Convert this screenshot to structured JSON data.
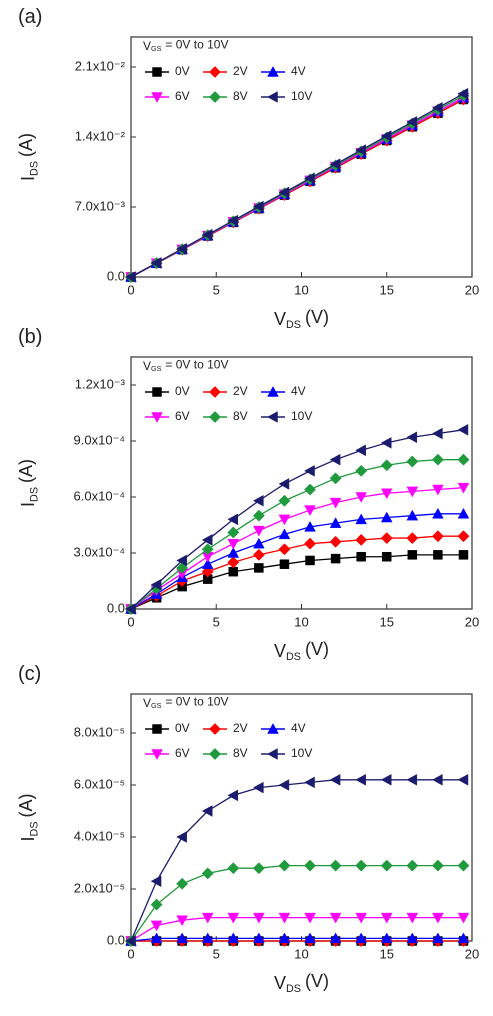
{
  "chart_data": [
    {
      "type": "line",
      "label": "(a)",
      "xlabel": {
        "text": "V",
        "sub": "DS",
        "unit": "(V)"
      },
      "ylabel": {
        "text": "I",
        "sub": "DS",
        "unit": "(A)"
      },
      "legend_title": {
        "text": "V",
        "sub": "GS",
        "rest": "= 0V to 10V"
      },
      "x": [
        0,
        1.5,
        3,
        4.5,
        6,
        7.5,
        9,
        10.5,
        12,
        13.5,
        15,
        16.5,
        18,
        19.5
      ],
      "xlim": [
        0,
        20
      ],
      "xticks": [
        0,
        5,
        10,
        15,
        20
      ],
      "ylim": [
        0,
        0.024
      ],
      "yticks": [
        {
          "value": 0,
          "label": "0.0"
        },
        {
          "value": 0.007,
          "label": "7.0x10⁻³"
        },
        {
          "value": 0.014,
          "label": "1.4x10⁻²"
        },
        {
          "value": 0.021,
          "label": "2.1x10⁻²"
        }
      ],
      "series": [
        {
          "name": "0V",
          "color": "#000000",
          "marker": "square",
          "values": [
            0,
            0.00137,
            0.00273,
            0.0041,
            0.00546,
            0.00683,
            0.00819,
            0.00956,
            0.01092,
            0.01229,
            0.01365,
            0.01502,
            0.01638,
            0.01775
          ]
        },
        {
          "name": "2V",
          "color": "#ff0000",
          "marker": "diamond",
          "values": [
            0,
            0.00137,
            0.00273,
            0.0041,
            0.00546,
            0.00683,
            0.00819,
            0.00956,
            0.01092,
            0.01229,
            0.01365,
            0.01502,
            0.01638,
            0.01775
          ]
        },
        {
          "name": "4V",
          "color": "#0000ff",
          "marker": "triangle-up",
          "values": [
            0,
            0.00138,
            0.00276,
            0.00414,
            0.00552,
            0.0069,
            0.00828,
            0.00966,
            0.01104,
            0.01242,
            0.0138,
            0.01518,
            0.01656,
            0.01794
          ]
        },
        {
          "name": "6V",
          "color": "#ff00ff",
          "marker": "triangle-down",
          "values": [
            0,
            0.00138,
            0.00276,
            0.00414,
            0.00552,
            0.0069,
            0.00828,
            0.00966,
            0.01104,
            0.01242,
            0.0138,
            0.01518,
            0.01656,
            0.01794
          ]
        },
        {
          "name": "8V",
          "color": "#1f9a3c",
          "marker": "diamond",
          "values": [
            0,
            0.0014,
            0.00279,
            0.00419,
            0.00558,
            0.00698,
            0.00837,
            0.00977,
            0.01116,
            0.01256,
            0.01395,
            0.01535,
            0.01674,
            0.01814
          ]
        },
        {
          "name": "10V",
          "color": "#1c1c6e",
          "marker": "triangle-left",
          "values": [
            0,
            0.00141,
            0.00282,
            0.00423,
            0.00564,
            0.00705,
            0.00846,
            0.00987,
            0.01128,
            0.01269,
            0.0141,
            0.01551,
            0.01692,
            0.01833
          ]
        }
      ]
    },
    {
      "type": "line",
      "label": "(b)",
      "xlabel": {
        "text": "V",
        "sub": "DS",
        "unit": "(V)"
      },
      "ylabel": {
        "text": "I",
        "sub": "DS",
        "unit": "(A)"
      },
      "legend_title": {
        "text": "V",
        "sub": "GS",
        "rest": "= 0V to 10V"
      },
      "x": [
        0,
        1.5,
        3,
        4.5,
        6,
        7.5,
        9,
        10.5,
        12,
        13.5,
        15,
        16.5,
        18,
        19.5
      ],
      "xlim": [
        0,
        20
      ],
      "xticks": [
        0,
        5,
        10,
        15,
        20
      ],
      "ylim": [
        0,
        0.00135
      ],
      "yticks": [
        {
          "value": 0,
          "label": "0.0"
        },
        {
          "value": 0.0003,
          "label": "3.0x10⁻⁴"
        },
        {
          "value": 0.0006,
          "label": "6.0x10⁻⁴"
        },
        {
          "value": 0.0009,
          "label": "9.0x10⁻⁴"
        },
        {
          "value": 0.0012,
          "label": "1.2x10⁻³"
        }
      ],
      "series": [
        {
          "name": "0V",
          "color": "#000000",
          "marker": "square",
          "values": [
            0,
            6e-05,
            0.00012,
            0.00016,
            0.0002,
            0.00022,
            0.00024,
            0.00026,
            0.00027,
            0.00028,
            0.00028,
            0.00029,
            0.00029,
            0.00029
          ]
        },
        {
          "name": "2V",
          "color": "#ff0000",
          "marker": "diamond",
          "values": [
            0,
            7e-05,
            0.00015,
            0.0002,
            0.00025,
            0.00029,
            0.00032,
            0.00035,
            0.00036,
            0.00037,
            0.00038,
            0.00038,
            0.00039,
            0.00039
          ]
        },
        {
          "name": "4V",
          "color": "#0000ff",
          "marker": "triangle-up",
          "values": [
            0,
            8e-05,
            0.00017,
            0.00024,
            0.0003,
            0.00035,
            0.0004,
            0.00044,
            0.00046,
            0.00048,
            0.00049,
            0.0005,
            0.00051,
            0.00051
          ]
        },
        {
          "name": "6V",
          "color": "#ff00ff",
          "marker": "triangle-down",
          "values": [
            0,
            0.0001,
            0.00019,
            0.00028,
            0.00035,
            0.00042,
            0.00048,
            0.00053,
            0.00057,
            0.0006,
            0.00062,
            0.00063,
            0.00064,
            0.00065
          ]
        },
        {
          "name": "8V",
          "color": "#1f9a3c",
          "marker": "diamond",
          "values": [
            0,
            0.00011,
            0.00022,
            0.00032,
            0.00041,
            0.0005,
            0.00058,
            0.00064,
            0.0007,
            0.00074,
            0.00077,
            0.00079,
            0.0008,
            0.0008
          ]
        },
        {
          "name": "10V",
          "color": "#1c1c6e",
          "marker": "triangle-left",
          "values": [
            0,
            0.00013,
            0.00026,
            0.00037,
            0.00048,
            0.00058,
            0.00067,
            0.00074,
            0.0008,
            0.00085,
            0.00089,
            0.00092,
            0.00094,
            0.00096
          ]
        }
      ]
    },
    {
      "type": "line",
      "label": "(c)",
      "xlabel": {
        "text": "V",
        "sub": "DS",
        "unit": "(V)"
      },
      "ylabel": {
        "text": "I",
        "sub": "DS",
        "unit": "(A)"
      },
      "legend_title": {
        "text": "V",
        "sub": "GS",
        "rest": "= 0V to 10V"
      },
      "x": [
        0,
        1.5,
        3,
        4.5,
        6,
        7.5,
        9,
        10.5,
        12,
        13.5,
        15,
        16.5,
        18,
        19.5
      ],
      "xlim": [
        0,
        20
      ],
      "xticks": [
        0,
        5,
        10,
        15,
        20
      ],
      "ylim": [
        0,
        9.5e-05
      ],
      "yticks": [
        {
          "value": 0,
          "label": "0.0"
        },
        {
          "value": 2e-05,
          "label": "2.0x10⁻⁵"
        },
        {
          "value": 4e-05,
          "label": "4.0x10⁻⁵"
        },
        {
          "value": 6e-05,
          "label": "6.0x10⁻⁵"
        },
        {
          "value": 8e-05,
          "label": "8.0x10⁻⁵"
        }
      ],
      "series": [
        {
          "name": "0V",
          "color": "#000000",
          "marker": "square",
          "values": [
            0,
            0,
            0,
            0,
            0,
            0,
            0,
            0,
            0,
            0,
            0,
            0,
            0,
            0
          ]
        },
        {
          "name": "2V",
          "color": "#ff0000",
          "marker": "diamond",
          "values": [
            0,
            0,
            0,
            0,
            0,
            0,
            0,
            0,
            0,
            0,
            0,
            0,
            0,
            0
          ]
        },
        {
          "name": "4V",
          "color": "#0000ff",
          "marker": "triangle-up",
          "values": [
            0,
            1e-06,
            1e-06,
            1e-06,
            1e-06,
            1e-06,
            1e-06,
            1e-06,
            1e-06,
            1e-06,
            1e-06,
            1e-06,
            1e-06,
            1e-06
          ]
        },
        {
          "name": "6V",
          "color": "#ff00ff",
          "marker": "triangle-down",
          "values": [
            0,
            6e-06,
            8e-06,
            9e-06,
            9e-06,
            9e-06,
            9e-06,
            9e-06,
            9e-06,
            9e-06,
            9e-06,
            9e-06,
            9e-06,
            9e-06
          ]
        },
        {
          "name": "8V",
          "color": "#1f9a3c",
          "marker": "diamond",
          "values": [
            0,
            1.4e-05,
            2.2e-05,
            2.6e-05,
            2.8e-05,
            2.8e-05,
            2.9e-05,
            2.9e-05,
            2.9e-05,
            2.9e-05,
            2.9e-05,
            2.9e-05,
            2.9e-05,
            2.9e-05
          ]
        },
        {
          "name": "10V",
          "color": "#1c1c6e",
          "marker": "triangle-left",
          "values": [
            0,
            2.3e-05,
            4e-05,
            5e-05,
            5.6e-05,
            5.9e-05,
            6e-05,
            6.1e-05,
            6.2e-05,
            6.2e-05,
            6.2e-05,
            6.2e-05,
            6.2e-05,
            6.2e-05
          ]
        }
      ]
    }
  ]
}
